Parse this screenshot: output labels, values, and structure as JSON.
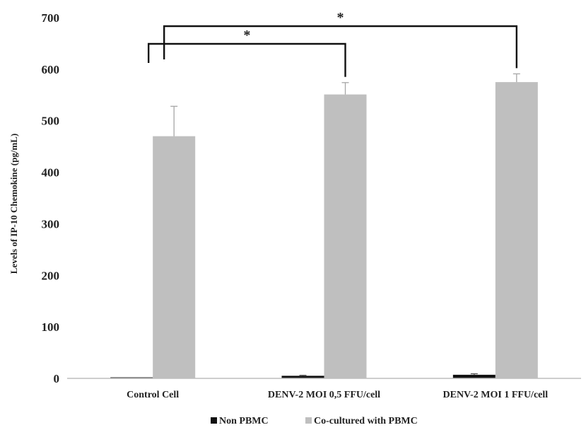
{
  "chart_data": {
    "type": "bar",
    "ylabel": "Levels of IP-10 Chemokine (pg/mL)",
    "ylim": [
      0,
      700
    ],
    "yticks": [
      0,
      100,
      200,
      300,
      400,
      500,
      600,
      700
    ],
    "categories": [
      "Control Cell",
      "DENV-2 MOI 0,5 FFU/cell",
      "DENV-2 MOI 1 FFU/cell"
    ],
    "series": [
      {
        "name": "Non PBMC",
        "color": "#111111",
        "values": [
          2,
          5,
          7
        ],
        "errors": [
          0,
          1,
          2
        ]
      },
      {
        "name": "Co-cultured with PBMC",
        "color": "#bfbfbf",
        "values": [
          470,
          551,
          575
        ],
        "errors": [
          58,
          23,
          16
        ]
      }
    ],
    "significance": [
      {
        "from": "Control Cell",
        "to": "DENV-2 MOI 0,5 FFU/cell",
        "label": "*"
      },
      {
        "from": "Control Cell",
        "to": "DENV-2 MOI 1 FFU/cell",
        "label": "*"
      }
    ],
    "legend_position": "bottom",
    "grid": false
  }
}
